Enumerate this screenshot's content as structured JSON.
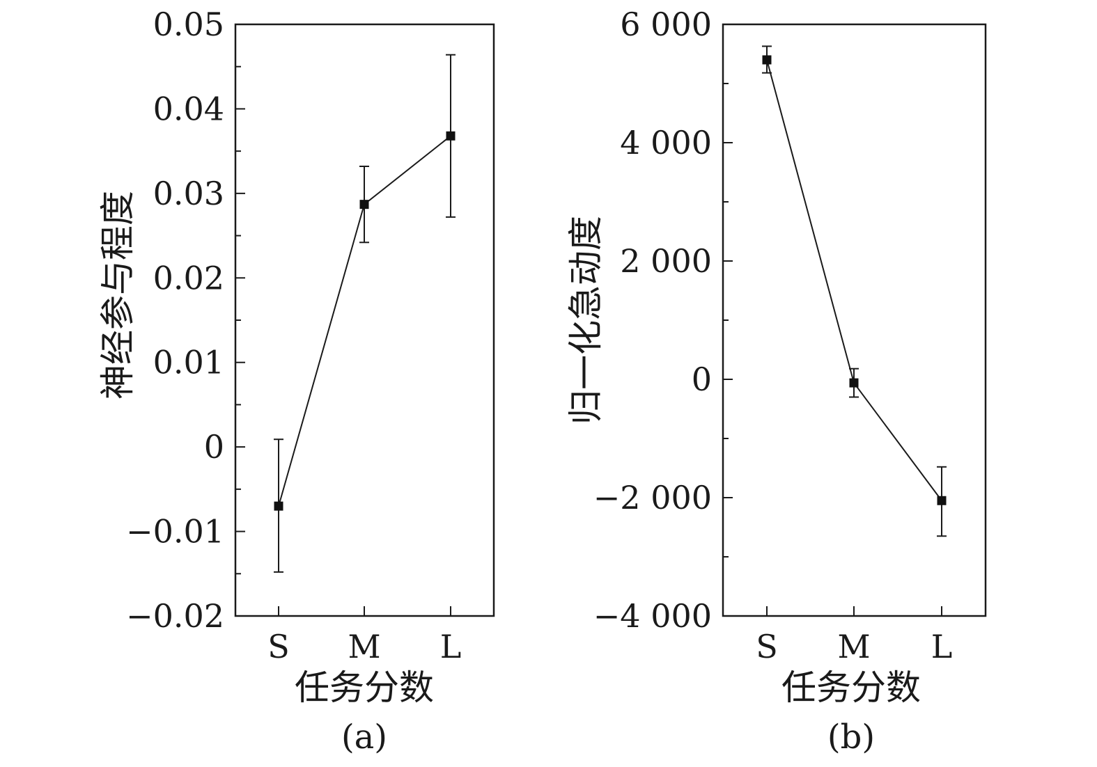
{
  "chart_data": [
    {
      "type": "line",
      "panel_label": "(a)",
      "xlabel": "任务分数",
      "ylabel": "神经参与程度",
      "categories": [
        "S",
        "M",
        "L"
      ],
      "ylim": [
        -0.02,
        0.05
      ],
      "yticks": [
        -0.02,
        -0.01,
        0,
        0.01,
        0.02,
        0.03,
        0.04,
        0.05
      ],
      "ytick_labels": [
        "−0.02",
        "−0.01",
        "0",
        "0.01",
        "0.02",
        "0.03",
        "0.04",
        "0.05"
      ],
      "yminor_step": 0.005,
      "grid": false,
      "series": [
        {
          "values": [
            -0.007,
            0.0287,
            0.0368
          ],
          "error_low": [
            -0.0148,
            0.0242,
            0.0272
          ],
          "error_high": [
            0.0009,
            0.0332,
            0.0464
          ]
        }
      ]
    },
    {
      "type": "line",
      "panel_label": "(b)",
      "xlabel": "任务分数",
      "ylabel": "归一化急动度",
      "categories": [
        "S",
        "M",
        "L"
      ],
      "ylim": [
        -4000,
        6000
      ],
      "yticks": [
        -4000,
        -2000,
        0,
        2000,
        4000,
        6000
      ],
      "ytick_labels": [
        "−4 000",
        "−2 000",
        "0",
        "2 000",
        "4 000",
        "6 000"
      ],
      "yminor_step": 1000,
      "grid": false,
      "series": [
        {
          "values": [
            5400,
            -60,
            -2050
          ],
          "error_low": [
            5180,
            -300,
            -2650
          ],
          "error_high": [
            5630,
            180,
            -1480
          ]
        }
      ]
    }
  ]
}
